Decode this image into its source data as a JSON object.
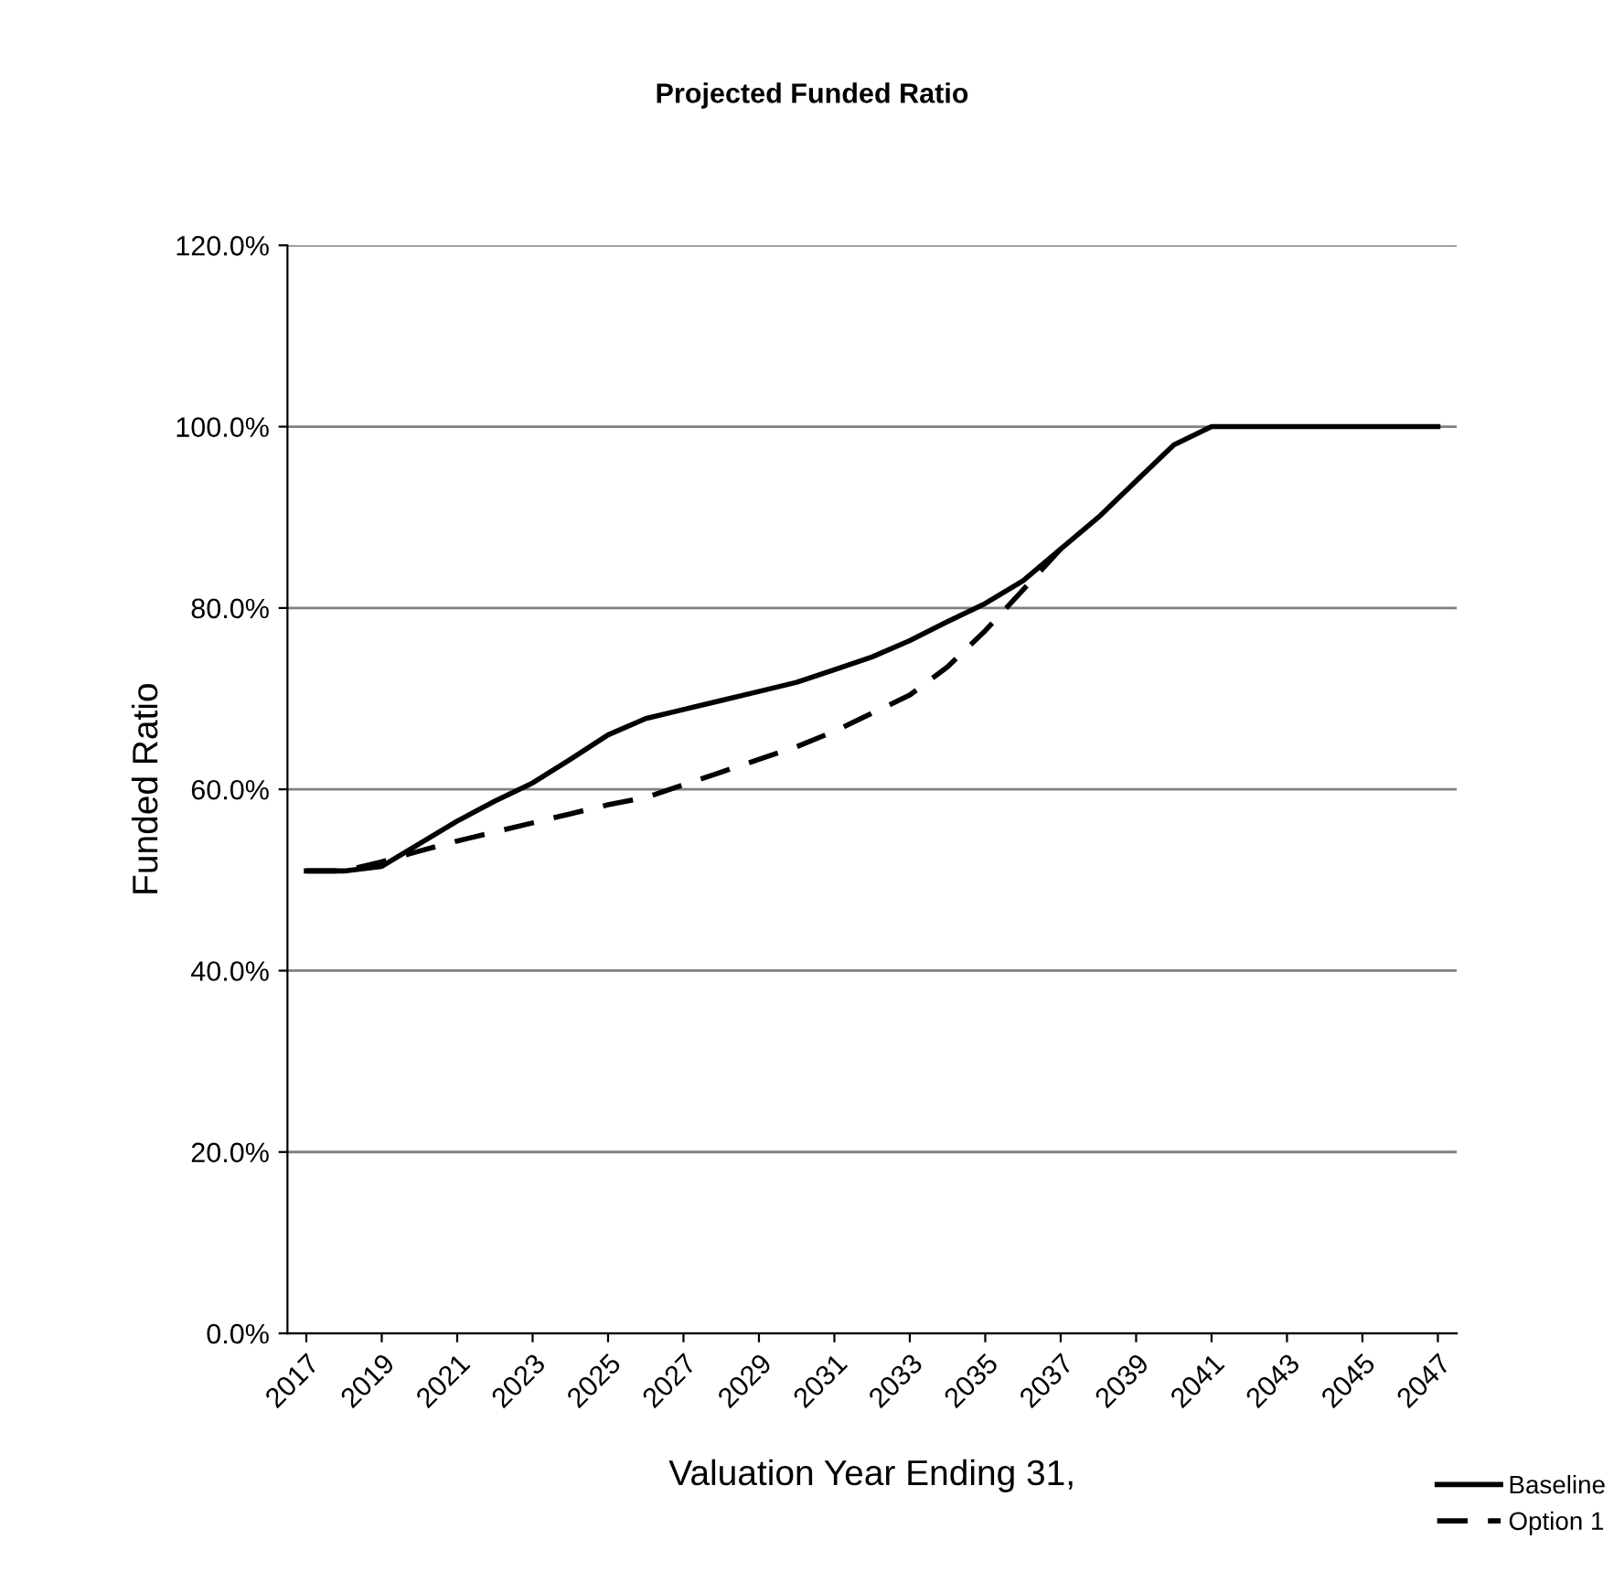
{
  "chart_data": {
    "type": "line",
    "title": "Projected Funded Ratio",
    "xlabel": "Valuation Year Ending 31,",
    "ylabel": "Funded Ratio",
    "x": [
      2017,
      2018,
      2019,
      2020,
      2021,
      2022,
      2023,
      2024,
      2025,
      2026,
      2027,
      2028,
      2029,
      2030,
      2031,
      2032,
      2033,
      2034,
      2035,
      2036,
      2037,
      2038,
      2039,
      2040,
      2041,
      2042,
      2043,
      2044,
      2045,
      2046,
      2047
    ],
    "series": [
      {
        "name": "Baseline",
        "color": "#000000",
        "line_style": "solid",
        "values": [
          51,
          51,
          51.5,
          54,
          56.5,
          58.7,
          60.7,
          63.3,
          66,
          67.8,
          68.8,
          69.8,
          70.8,
          71.8,
          73.2,
          74.6,
          76.4,
          78.5,
          80.5,
          83,
          86.5,
          90,
          94,
          98,
          100,
          100,
          100,
          100,
          100,
          100,
          100
        ]
      },
      {
        "name": "Option 1",
        "color": "#000000",
        "line_style": "dashed",
        "values": [
          51,
          51,
          52,
          53.2,
          54.3,
          55.3,
          56.3,
          57.3,
          58.3,
          59.1,
          60.5,
          61.9,
          63.3,
          64.7,
          66.4,
          68.4,
          70.4,
          73.5,
          77.5,
          82,
          86.5,
          null,
          null,
          null,
          null,
          null,
          null,
          null,
          null,
          null,
          null
        ]
      }
    ],
    "xlim": [
      2016.5,
      2047.5
    ],
    "xticks": [
      2017,
      2019,
      2021,
      2023,
      2025,
      2027,
      2029,
      2031,
      2033,
      2035,
      2037,
      2039,
      2041,
      2043,
      2045,
      2047
    ],
    "ylim": [
      0,
      120
    ],
    "yticks": [
      {
        "value": 0,
        "label": "0.0%"
      },
      {
        "value": 20,
        "label": "20.0%"
      },
      {
        "value": 40,
        "label": "40.0%"
      },
      {
        "value": 60,
        "label": "60.0%"
      },
      {
        "value": 80,
        "label": "80.0%"
      },
      {
        "value": 100,
        "label": "100.0%"
      },
      {
        "value": 120,
        "label": "120.0%"
      }
    ],
    "grid": "y",
    "legend": "bottom right",
    "marker": "none"
  }
}
